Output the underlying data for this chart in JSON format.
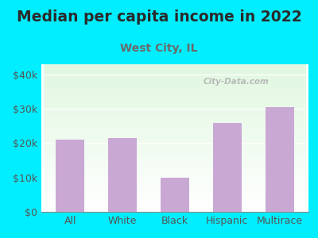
{
  "title": "Median per capita income in 2022",
  "subtitle": "West City, IL",
  "categories": [
    "All",
    "White",
    "Black",
    "Hispanic",
    "Multirace"
  ],
  "values": [
    21000,
    21500,
    10000,
    26000,
    30500
  ],
  "bar_color": "#c9a8d4",
  "title_fontsize": 13.5,
  "subtitle_fontsize": 10,
  "subtitle_color": "#6a6a6a",
  "title_color": "#2a2a2a",
  "background_outer": "#00eeff",
  "tick_color": "#555555",
  "yticks": [
    0,
    10000,
    20000,
    30000,
    40000
  ],
  "ytick_labels": [
    "$0",
    "$10k",
    "$20k",
    "$30k",
    "$40k"
  ],
  "ylim": [
    0,
    43000
  ],
  "watermark": "City-Data.com",
  "xlabel_fontsize": 9,
  "ylabel_fontsize": 9
}
